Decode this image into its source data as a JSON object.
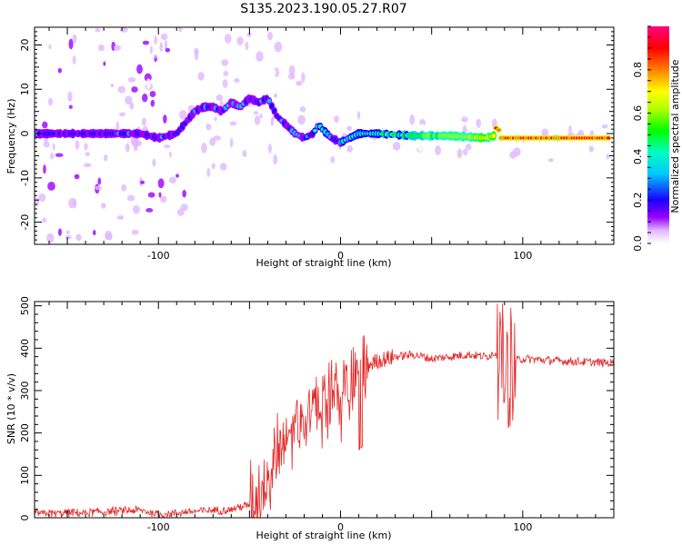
{
  "title": "S135.2023.190.05.27.R07",
  "chart_data": [
    {
      "type": "heatmap",
      "xlabel": "Height of straight line (km)",
      "ylabel": "Frequency (Hz)",
      "xlim": [
        -168,
        150
      ],
      "ylim": [
        -25,
        24
      ],
      "xticks": [
        -100,
        0,
        100
      ],
      "yticks": [
        -20,
        -10,
        0,
        10,
        20
      ],
      "ridge": {
        "x": [
          -165,
          -150,
          -130,
          -110,
          -100,
          -90,
          -80,
          -75,
          -70,
          -65,
          -60,
          -55,
          -50,
          -45,
          -40,
          -35,
          -30,
          -25,
          -20,
          -15,
          -12,
          -10,
          -5,
          0,
          10,
          20,
          40,
          60,
          80,
          84,
          86,
          88,
          100,
          120,
          148
        ],
        "y": [
          0,
          0,
          0,
          0,
          -1,
          0,
          5,
          6,
          6,
          5,
          7,
          6,
          8,
          7,
          8,
          4,
          2,
          0,
          -1,
          0,
          2,
          1,
          -1,
          -2,
          0,
          0,
          -0.5,
          -0.5,
          -1,
          -0.5,
          2,
          -1,
          -1,
          -1,
          -1
        ]
      },
      "colorbar": {
        "label": "Normalized spectral amplitude",
        "range": [
          0.0,
          1.0
        ],
        "ticks": [
          "0.0",
          "0.2",
          "0.4",
          "0.6",
          "0.8"
        ]
      }
    },
    {
      "type": "line",
      "xlabel": "Height of straight line (km)",
      "ylabel": "SNR (10 * v/v)",
      "xlim": [
        -168,
        150
      ],
      "ylim": [
        0,
        510
      ],
      "xticks": [
        -100,
        0,
        100
      ],
      "yticks": [
        0,
        100,
        200,
        300,
        400,
        500
      ],
      "color": "#e32626",
      "envelope": {
        "x": [
          -168,
          -140,
          -110,
          -100,
          -80,
          -60,
          -50,
          -45,
          -40,
          -35,
          -30,
          -25,
          -20,
          -15,
          -10,
          -5,
          0,
          5,
          10,
          15,
          20,
          30,
          40,
          50,
          60,
          70,
          80,
          85,
          88,
          92,
          95,
          100,
          120,
          150
        ],
        "y": [
          10,
          12,
          18,
          8,
          15,
          20,
          30,
          60,
          110,
          150,
          190,
          220,
          250,
          260,
          270,
          280,
          300,
          320,
          340,
          360,
          370,
          380,
          385,
          375,
          380,
          385,
          380,
          390,
          370,
          350,
          370,
          375,
          370,
          365
        ]
      }
    }
  ]
}
